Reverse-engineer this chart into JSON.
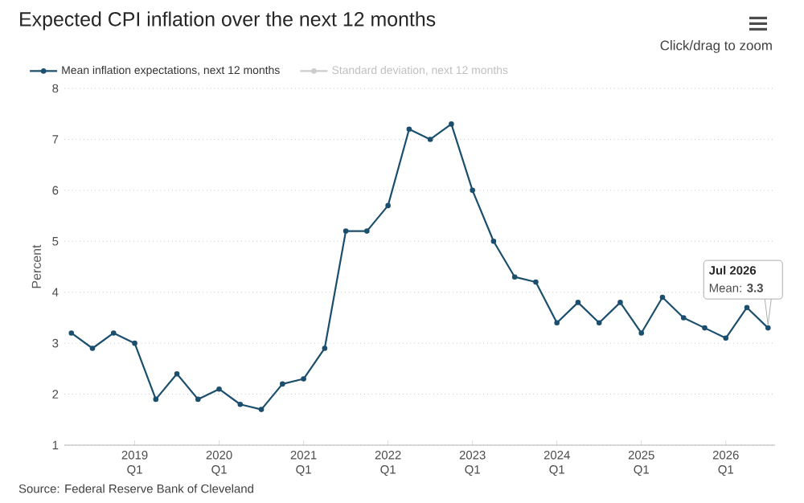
{
  "chart_data": {
    "type": "line",
    "title": "Expected CPI inflation over the next 12 months",
    "ylabel": "Percent",
    "x": [
      "2018-04",
      "2018-07",
      "2018-10",
      "2019-01",
      "2019-04",
      "2019-07",
      "2019-10",
      "2020-01",
      "2020-04",
      "2020-07",
      "2020-10",
      "2021-01",
      "2021-04",
      "2021-07",
      "2021-10",
      "2022-01",
      "2022-04",
      "2022-07",
      "2022-10",
      "2023-01",
      "2023-04",
      "2023-07",
      "2023-10",
      "2024-01",
      "2024-04",
      "2024-07",
      "2024-10",
      "2025-01",
      "2025-04",
      "2025-07",
      "2025-10",
      "2026-01",
      "2026-04",
      "2026-07"
    ],
    "series": [
      {
        "name": "Mean inflation expectations, next 12 months",
        "color": "#1c4f6e",
        "values": [
          3.2,
          2.9,
          3.2,
          3.0,
          1.9,
          2.4,
          1.9,
          2.1,
          1.8,
          1.7,
          2.2,
          2.3,
          2.9,
          5.2,
          5.2,
          5.7,
          7.2,
          7.0,
          7.3,
          6.0,
          5.0,
          4.3,
          4.2,
          3.4,
          3.8,
          3.4,
          3.8,
          3.2,
          3.9,
          3.5,
          3.3,
          3.1,
          3.7,
          3.3
        ]
      },
      {
        "name": "Standard deviation, next 12 months",
        "color": "#cccccc",
        "values": [
          null,
          null,
          null,
          null,
          null,
          null,
          null,
          null,
          null,
          null,
          null,
          null,
          null,
          null,
          null,
          null,
          null,
          null,
          null,
          null,
          null,
          null,
          null,
          null,
          null,
          null,
          null,
          null,
          null,
          null,
          null,
          null,
          null,
          null
        ]
      }
    ],
    "xlim": [
      "2018-03",
      "2026-08"
    ],
    "xticks": [
      {
        "value": "2019-01",
        "label": "2019 Q1"
      },
      {
        "value": "2020-01",
        "label": "2020 Q1"
      },
      {
        "value": "2021-01",
        "label": "2021 Q1"
      },
      {
        "value": "2022-01",
        "label": "2022 Q1"
      },
      {
        "value": "2023-01",
        "label": "2023 Q1"
      },
      {
        "value": "2024-01",
        "label": "2024 Q1"
      },
      {
        "value": "2025-01",
        "label": "2025 Q1"
      },
      {
        "value": "2026-01",
        "label": "2026 Q1"
      }
    ],
    "ylim": [
      1,
      8
    ],
    "yticks": [
      1,
      2,
      3,
      4,
      5,
      6,
      7,
      8
    ],
    "grid": "y",
    "legend": "top",
    "marker": "circle",
    "line_style": "solid",
    "annotations": [
      "Click/drag to zoom",
      "Source: Federal Reserve Bank of Cleveland",
      "Jul 2026",
      {
        "text": "Mean: **3.3**",
        "x": "2026-07",
        "y": 3.3
      }
    ]
  }
}
